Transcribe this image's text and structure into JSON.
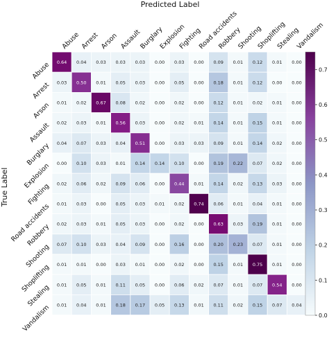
{
  "chart_data": {
    "type": "heatmap",
    "title": "Predicted Label",
    "xlabel": "",
    "ylabel": "True Label",
    "categories": [
      "Abuse",
      "Arrest",
      "Arson",
      "Assault",
      "Burglary",
      "Explosion",
      "Fighting",
      "Road accidents",
      "Robbery",
      "Shooting",
      "Shoplifting",
      "Stealing",
      "Vandalism"
    ],
    "matrix": [
      [
        0.64,
        0.04,
        0.03,
        0.03,
        0.03,
        0.0,
        0.03,
        0.0,
        0.09,
        0.01,
        0.12,
        0.01,
        0.0
      ],
      [
        0.03,
        0.5,
        0.01,
        0.05,
        0.03,
        0.0,
        0.05,
        0.0,
        0.18,
        0.01,
        0.12,
        0.0,
        0.0
      ],
      [
        0.01,
        0.02,
        0.67,
        0.08,
        0.02,
        0.0,
        0.02,
        0.0,
        0.12,
        0.01,
        0.02,
        0.01,
        0.0
      ],
      [
        0.02,
        0.03,
        0.01,
        0.56,
        0.03,
        0.0,
        0.02,
        0.01,
        0.14,
        0.01,
        0.15,
        0.01,
        0.0
      ],
      [
        0.04,
        0.07,
        0.03,
        0.04,
        0.51,
        0.0,
        0.03,
        0.03,
        0.09,
        0.01,
        0.14,
        0.02,
        0.0
      ],
      [
        0.0,
        0.1,
        0.03,
        0.01,
        0.14,
        0.14,
        0.1,
        0.0,
        0.19,
        0.22,
        0.07,
        0.02,
        0.0
      ],
      [
        0.02,
        0.06,
        0.02,
        0.09,
        0.06,
        0.0,
        0.44,
        0.01,
        0.14,
        0.02,
        0.13,
        0.03,
        0.0
      ],
      [
        0.01,
        0.03,
        0.0,
        0.05,
        0.03,
        0.01,
        0.02,
        0.74,
        0.06,
        0.01,
        0.04,
        0.01,
        0.0
      ],
      [
        0.02,
        0.03,
        0.01,
        0.05,
        0.03,
        0.0,
        0.02,
        0.0,
        0.63,
        0.03,
        0.19,
        0.01,
        0.0
      ],
      [
        0.07,
        0.1,
        0.03,
        0.04,
        0.09,
        0.0,
        0.16,
        0.0,
        0.2,
        0.23,
        0.07,
        0.01,
        0.0
      ],
      [
        0.01,
        0.01,
        0.0,
        0.03,
        0.01,
        0.0,
        0.02,
        0.0,
        0.15,
        0.01,
        0.75,
        0.01,
        0.0
      ],
      [
        0.01,
        0.05,
        0.01,
        0.11,
        0.05,
        0.0,
        0.06,
        0.02,
        0.07,
        0.01,
        0.07,
        0.54,
        0.0
      ],
      [
        0.01,
        0.04,
        0.01,
        0.18,
        0.17,
        0.05,
        0.13,
        0.01,
        0.11,
        0.02,
        0.15,
        0.07,
        0.04
      ]
    ],
    "colorbar": {
      "min": 0.0,
      "max": 0.75,
      "ticks": [
        "0.0",
        "0.1",
        "0.2",
        "0.3",
        "0.4",
        "0.5",
        "0.6",
        "0.7"
      ],
      "colormap": "white-to-purple",
      "low_color": "#f7fcfd",
      "mid_color": "#8c6bb1",
      "high_color": "#4d004b"
    }
  }
}
